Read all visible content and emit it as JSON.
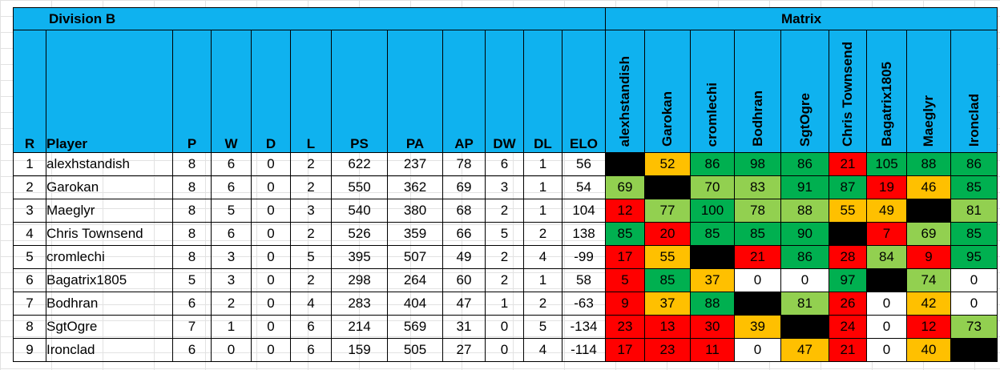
{
  "sheet": {
    "division_title": "Division B",
    "matrix_title": "Matrix",
    "columns": [
      "R",
      "Player",
      "P",
      "W",
      "D",
      "L",
      "PS",
      "PA",
      "AP",
      "DW",
      "DL",
      "ELO"
    ],
    "matrix_columns": [
      "alexhstandish",
      "Garokan",
      "cromlechi",
      "Bodhran",
      "SgtOgre",
      "Chris Townsend",
      "Bagatrix1805",
      "Maeglyr",
      "Ironclad"
    ],
    "colors": {
      "header": "#0fb2ef",
      "dark_green": "#00b050",
      "light_green": "#92d050",
      "orange": "#ffc000",
      "red": "#ff0000",
      "black": "#000000",
      "white": "#ffffff"
    },
    "rows": [
      {
        "r": "1",
        "player": "alexhstandish",
        "p": "8",
        "w": "6",
        "d": "0",
        "l": "2",
        "ps": "622",
        "pa": "237",
        "ap": "78",
        "dw": "6",
        "dl": "1",
        "elo": "56",
        "matrix": [
          {
            "v": "",
            "c": "black"
          },
          {
            "v": "52",
            "c": "orange"
          },
          {
            "v": "86",
            "c": "dark_green"
          },
          {
            "v": "98",
            "c": "dark_green"
          },
          {
            "v": "86",
            "c": "dark_green"
          },
          {
            "v": "21",
            "c": "red"
          },
          {
            "v": "105",
            "c": "dark_green"
          },
          {
            "v": "88",
            "c": "dark_green"
          },
          {
            "v": "86",
            "c": "dark_green"
          }
        ]
      },
      {
        "r": "2",
        "player": "Garokan",
        "p": "8",
        "w": "6",
        "d": "0",
        "l": "2",
        "ps": "550",
        "pa": "362",
        "ap": "69",
        "dw": "3",
        "dl": "1",
        "elo": "54",
        "matrix": [
          {
            "v": "69",
            "c": "light_green"
          },
          {
            "v": "",
            "c": "black"
          },
          {
            "v": "70",
            "c": "light_green"
          },
          {
            "v": "83",
            "c": "light_green"
          },
          {
            "v": "91",
            "c": "dark_green"
          },
          {
            "v": "87",
            "c": "dark_green"
          },
          {
            "v": "19",
            "c": "red"
          },
          {
            "v": "46",
            "c": "orange"
          },
          {
            "v": "85",
            "c": "dark_green"
          }
        ]
      },
      {
        "r": "3",
        "player": "Maeglyr",
        "p": "8",
        "w": "5",
        "d": "0",
        "l": "3",
        "ps": "540",
        "pa": "380",
        "ap": "68",
        "dw": "2",
        "dl": "1",
        "elo": "104",
        "matrix": [
          {
            "v": "12",
            "c": "red"
          },
          {
            "v": "77",
            "c": "light_green"
          },
          {
            "v": "100",
            "c": "dark_green"
          },
          {
            "v": "78",
            "c": "light_green"
          },
          {
            "v": "88",
            "c": "light_green"
          },
          {
            "v": "55",
            "c": "orange"
          },
          {
            "v": "49",
            "c": "orange"
          },
          {
            "v": "",
            "c": "black"
          },
          {
            "v": "81",
            "c": "light_green"
          }
        ]
      },
      {
        "r": "4",
        "player": "Chris Townsend",
        "p": "8",
        "w": "6",
        "d": "0",
        "l": "2",
        "ps": "526",
        "pa": "359",
        "ap": "66",
        "dw": "5",
        "dl": "2",
        "elo": "138",
        "matrix": [
          {
            "v": "85",
            "c": "dark_green"
          },
          {
            "v": "20",
            "c": "red"
          },
          {
            "v": "85",
            "c": "dark_green"
          },
          {
            "v": "85",
            "c": "dark_green"
          },
          {
            "v": "90",
            "c": "dark_green"
          },
          {
            "v": "",
            "c": "black"
          },
          {
            "v": "7",
            "c": "red"
          },
          {
            "v": "69",
            "c": "light_green"
          },
          {
            "v": "85",
            "c": "dark_green"
          }
        ]
      },
      {
        "r": "5",
        "player": "cromlechi",
        "p": "8",
        "w": "3",
        "d": "0",
        "l": "5",
        "ps": "395",
        "pa": "507",
        "ap": "49",
        "dw": "2",
        "dl": "4",
        "elo": "-99",
        "matrix": [
          {
            "v": "17",
            "c": "red"
          },
          {
            "v": "55",
            "c": "orange"
          },
          {
            "v": "",
            "c": "black"
          },
          {
            "v": "21",
            "c": "red"
          },
          {
            "v": "86",
            "c": "dark_green"
          },
          {
            "v": "28",
            "c": "red"
          },
          {
            "v": "84",
            "c": "light_green"
          },
          {
            "v": "9",
            "c": "red"
          },
          {
            "v": "95",
            "c": "dark_green"
          }
        ]
      },
      {
        "r": "6",
        "player": "Bagatrix1805",
        "p": "5",
        "w": "3",
        "d": "0",
        "l": "2",
        "ps": "298",
        "pa": "264",
        "ap": "60",
        "dw": "2",
        "dl": "1",
        "elo": "58",
        "matrix": [
          {
            "v": "5",
            "c": "red"
          },
          {
            "v": "85",
            "c": "dark_green"
          },
          {
            "v": "37",
            "c": "orange"
          },
          {
            "v": "0",
            "c": "white"
          },
          {
            "v": "0",
            "c": "white"
          },
          {
            "v": "97",
            "c": "dark_green"
          },
          {
            "v": "",
            "c": "black"
          },
          {
            "v": "74",
            "c": "light_green"
          },
          {
            "v": "0",
            "c": "white"
          }
        ]
      },
      {
        "r": "7",
        "player": "Bodhran",
        "p": "6",
        "w": "2",
        "d": "0",
        "l": "4",
        "ps": "283",
        "pa": "404",
        "ap": "47",
        "dw": "1",
        "dl": "2",
        "elo": "-63",
        "matrix": [
          {
            "v": "9",
            "c": "red"
          },
          {
            "v": "37",
            "c": "orange"
          },
          {
            "v": "88",
            "c": "dark_green"
          },
          {
            "v": "",
            "c": "black"
          },
          {
            "v": "81",
            "c": "light_green"
          },
          {
            "v": "26",
            "c": "red"
          },
          {
            "v": "0",
            "c": "white"
          },
          {
            "v": "42",
            "c": "orange"
          },
          {
            "v": "0",
            "c": "white"
          }
        ]
      },
      {
        "r": "8",
        "player": "SgtOgre",
        "p": "7",
        "w": "1",
        "d": "0",
        "l": "6",
        "ps": "214",
        "pa": "569",
        "ap": "31",
        "dw": "0",
        "dl": "5",
        "elo": "-134",
        "matrix": [
          {
            "v": "23",
            "c": "red"
          },
          {
            "v": "13",
            "c": "red"
          },
          {
            "v": "30",
            "c": "red"
          },
          {
            "v": "39",
            "c": "orange"
          },
          {
            "v": "",
            "c": "black"
          },
          {
            "v": "24",
            "c": "red"
          },
          {
            "v": "0",
            "c": "white"
          },
          {
            "v": "12",
            "c": "red"
          },
          {
            "v": "73",
            "c": "light_green"
          }
        ]
      },
      {
        "r": "9",
        "player": "Ironclad",
        "p": "6",
        "w": "0",
        "d": "0",
        "l": "6",
        "ps": "159",
        "pa": "505",
        "ap": "27",
        "dw": "0",
        "dl": "4",
        "elo": "-114",
        "matrix": [
          {
            "v": "17",
            "c": "red"
          },
          {
            "v": "23",
            "c": "red"
          },
          {
            "v": "11",
            "c": "red"
          },
          {
            "v": "0",
            "c": "white"
          },
          {
            "v": "47",
            "c": "orange"
          },
          {
            "v": "21",
            "c": "red"
          },
          {
            "v": "0",
            "c": "white"
          },
          {
            "v": "40",
            "c": "orange"
          },
          {
            "v": "",
            "c": "black"
          }
        ]
      }
    ]
  }
}
